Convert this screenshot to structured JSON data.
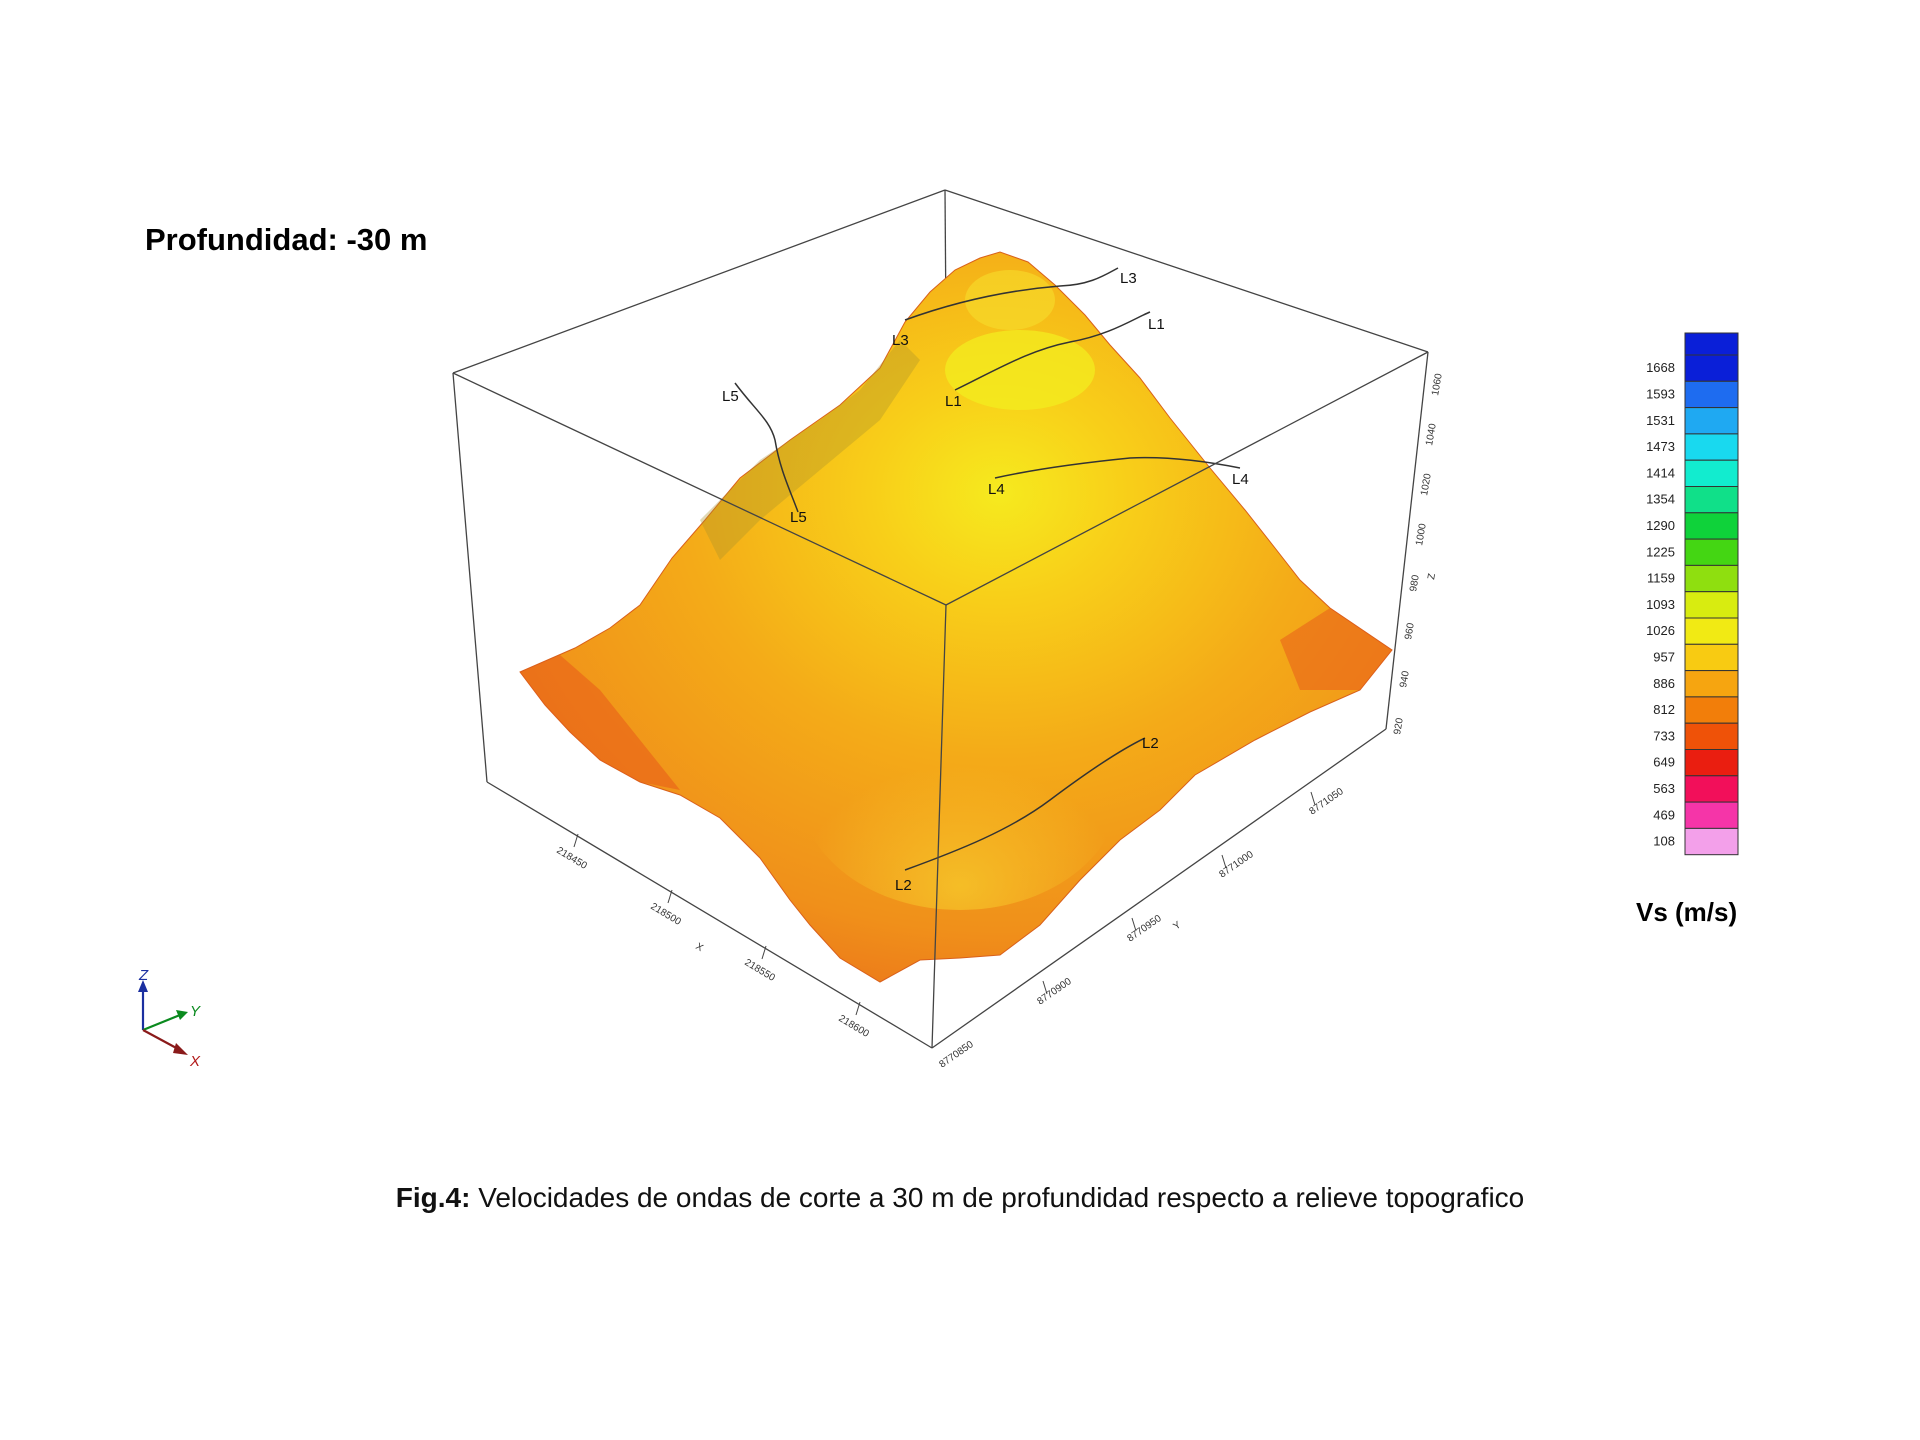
{
  "depth_title": "Profundidad: -30 m",
  "line_labels": {
    "L1": "L1",
    "L2": "L2",
    "L3": "L3",
    "L4": "L4",
    "L5": "L5"
  },
  "axes": {
    "x": {
      "label": "X",
      "ticks": [
        "218450",
        "218500",
        "218550",
        "218600"
      ]
    },
    "y": {
      "label": "Y",
      "ticks": [
        "8770850",
        "8770900",
        "8770950",
        "8771000",
        "8771050"
      ]
    },
    "z": {
      "label": "Z",
      "ticks": [
        "920",
        "940",
        "960",
        "980",
        "1000",
        "1020",
        "1040",
        "1060"
      ]
    }
  },
  "legend": {
    "title": "Vs (m/s)",
    "values": [
      "1668",
      "1593",
      "1531",
      "1473",
      "1414",
      "1354",
      "1290",
      "1225",
      "1159",
      "1093",
      "1026",
      "957",
      "886",
      "812",
      "733",
      "649",
      "563",
      "469",
      "108"
    ],
    "colors": [
      "#0a1fd8",
      "#1e6cf0",
      "#1fa9f2",
      "#19d9ef",
      "#12eccf",
      "#10e089",
      "#0fd23a",
      "#44d613",
      "#8fdf0f",
      "#d8ec10",
      "#f1ea14",
      "#f8cb12",
      "#f6a510",
      "#f27e0a",
      "#ef5208",
      "#ea1e10",
      "#f20f5a",
      "#f535a8",
      "#f3a0ea"
    ]
  },
  "orientation": {
    "x": "X",
    "y": "Y",
    "z": "Z"
  },
  "caption": {
    "label": "Fig.4:",
    "text": " Velocidades de ondas de corte a 30 m de profundidad respecto a relieve topografico"
  }
}
